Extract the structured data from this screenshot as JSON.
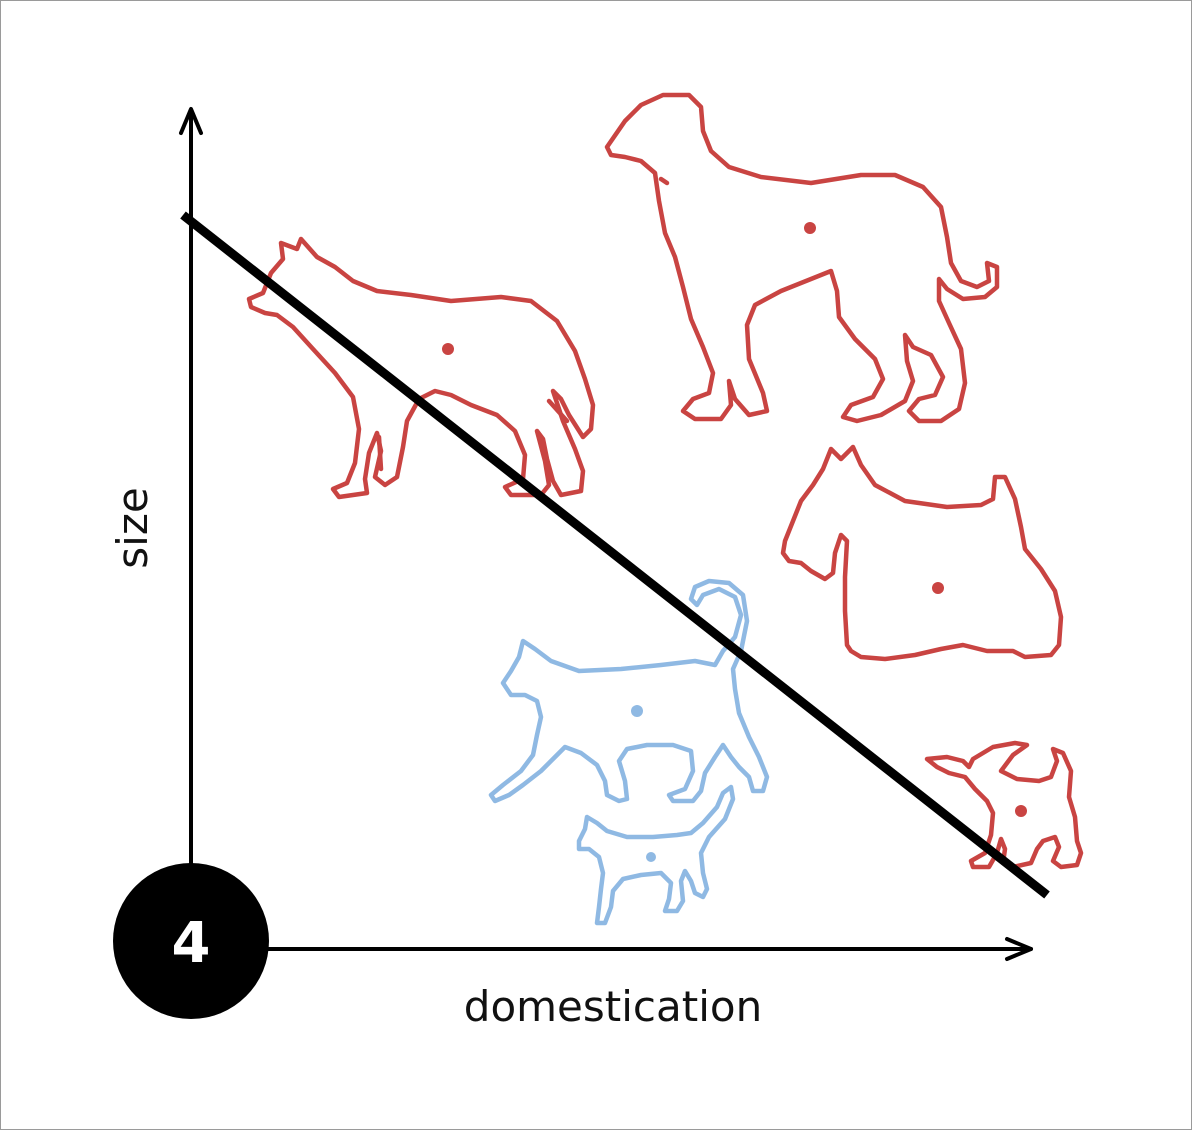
{
  "axes": {
    "x_label": "domestication",
    "y_label": "size"
  },
  "badge": {
    "number": "4"
  },
  "colors": {
    "dog": "#c94442",
    "cat": "#8fb9e3",
    "line": "#000000",
    "badge_bg": "#000000"
  },
  "icons": [
    "wolf-icon",
    "greyhound-icon",
    "scottie-icon",
    "chihuahua-icon",
    "large-cat-icon",
    "small-cat-icon"
  ]
}
